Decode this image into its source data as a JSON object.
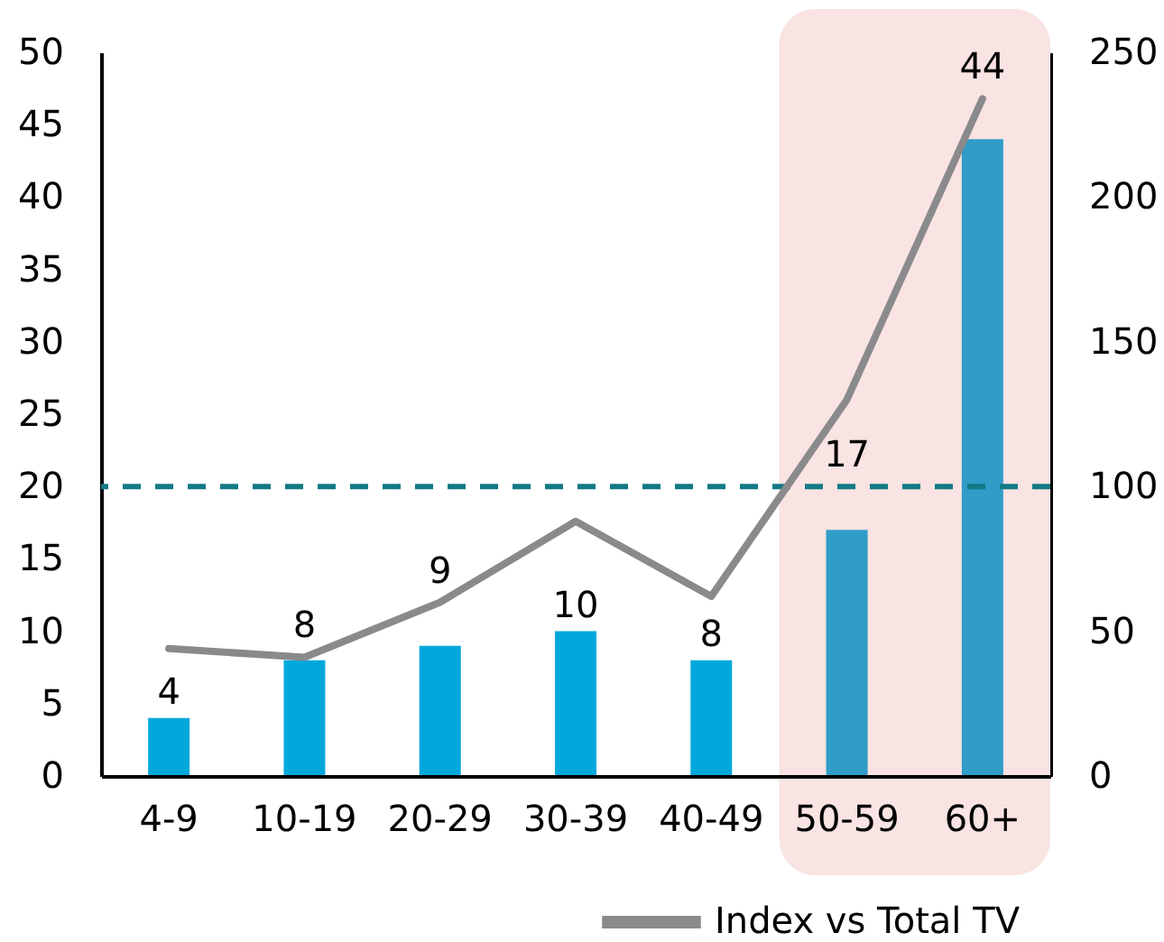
{
  "chart_data": {
    "type": "bar",
    "categories": [
      "4-9",
      "10-19",
      "20-29",
      "30-39",
      "40-49",
      "50-59",
      "60+"
    ],
    "series": [
      {
        "colors": [
          "#00a8dc",
          "#00a8dc",
          "#00a8dc",
          "#00a8dc",
          "#00a8dc",
          "#2f9dc8",
          "#2f9dc8"
        ],
        "values": [
          4,
          8,
          9,
          10,
          8,
          17,
          44
        ],
        "data_labels": true
      },
      {
        "type": "line",
        "name": "Index vs Total TV",
        "color": "#8a8a8c",
        "axis": "y2",
        "values": [
          44,
          41,
          60,
          88,
          62,
          130,
          234
        ]
      }
    ],
    "ylim": [
      0,
      50
    ],
    "yticks": [
      0,
      5,
      10,
      15,
      20,
      25,
      30,
      35,
      40,
      45,
      50
    ],
    "y2lim": [
      0,
      250
    ],
    "y2ticks": [
      0,
      50,
      100,
      150,
      200,
      250
    ],
    "ref_lines": [
      {
        "axis": "y",
        "value": 20,
        "color": "#137a85",
        "line_style": "dashed"
      }
    ],
    "bands": [
      {
        "axis": "x",
        "from": "50-59",
        "to": "60+",
        "color": "#f9e3e3"
      }
    ],
    "legend": "bottom",
    "grid": false
  }
}
